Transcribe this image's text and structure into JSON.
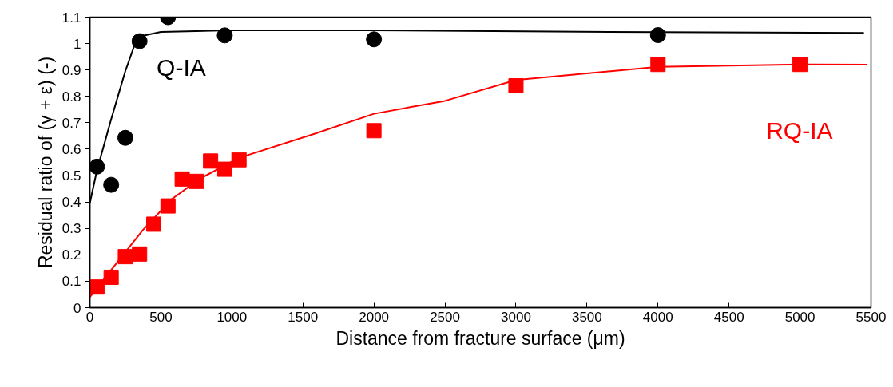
{
  "chart_data": {
    "type": "scatter",
    "xlabel": "Distance from fracture surface (μm)",
    "ylabel": "Residual ratio of (γ + ε) (-)",
    "xlim": [
      0,
      5500
    ],
    "ylim": [
      0,
      1.1
    ],
    "xticks": [
      0,
      500,
      1000,
      1500,
      2000,
      2500,
      3000,
      3500,
      4000,
      4500,
      5000,
      5500
    ],
    "yticks": [
      0,
      0.1,
      0.2,
      0.3,
      0.4,
      0.5,
      0.6,
      0.7,
      0.8,
      0.9,
      1,
      1.1
    ],
    "grid": false,
    "series": [
      {
        "name": "Q-IA",
        "marker": "circle",
        "color": "#000000",
        "x": [
          50,
          150,
          250,
          350,
          550,
          950,
          2000,
          4000
        ],
        "values": [
          0.534,
          0.465,
          0.643,
          1.009,
          1.1,
          1.031,
          1.016,
          1.032
        ]
      },
      {
        "name": "RQ-IA",
        "marker": "square",
        "color": "#ff0000",
        "x": [
          50,
          150,
          250,
          350,
          450,
          550,
          650,
          750,
          850,
          950,
          1050,
          2000,
          3000,
          4000,
          5000
        ],
        "values": [
          0.078,
          0.115,
          0.193,
          0.203,
          0.316,
          0.385,
          0.487,
          0.478,
          0.555,
          0.524,
          0.56,
          0.67,
          0.84,
          0.921,
          0.921
        ]
      },
      {
        "type": "line",
        "marker": "none",
        "color": "#000000",
        "x": [
          0,
          50,
          150,
          250,
          310,
          375,
          500,
          980,
          2000,
          4000,
          5450
        ],
        "values": [
          0.395,
          0.52,
          0.713,
          0.896,
          0.987,
          1.03,
          1.044,
          1.05,
          1.05,
          1.043,
          1.04
        ]
      },
      {
        "type": "line",
        "marker": "none",
        "color": "#ff0000",
        "x": [
          0,
          173,
          375,
          577,
          778,
          1050,
          1585,
          2000,
          2500,
          3000,
          4000,
          5000,
          5475
        ],
        "values": [
          0.04,
          0.158,
          0.295,
          0.411,
          0.489,
          0.567,
          0.659,
          0.734,
          0.783,
          0.862,
          0.912,
          0.921,
          0.92
        ]
      }
    ]
  }
}
